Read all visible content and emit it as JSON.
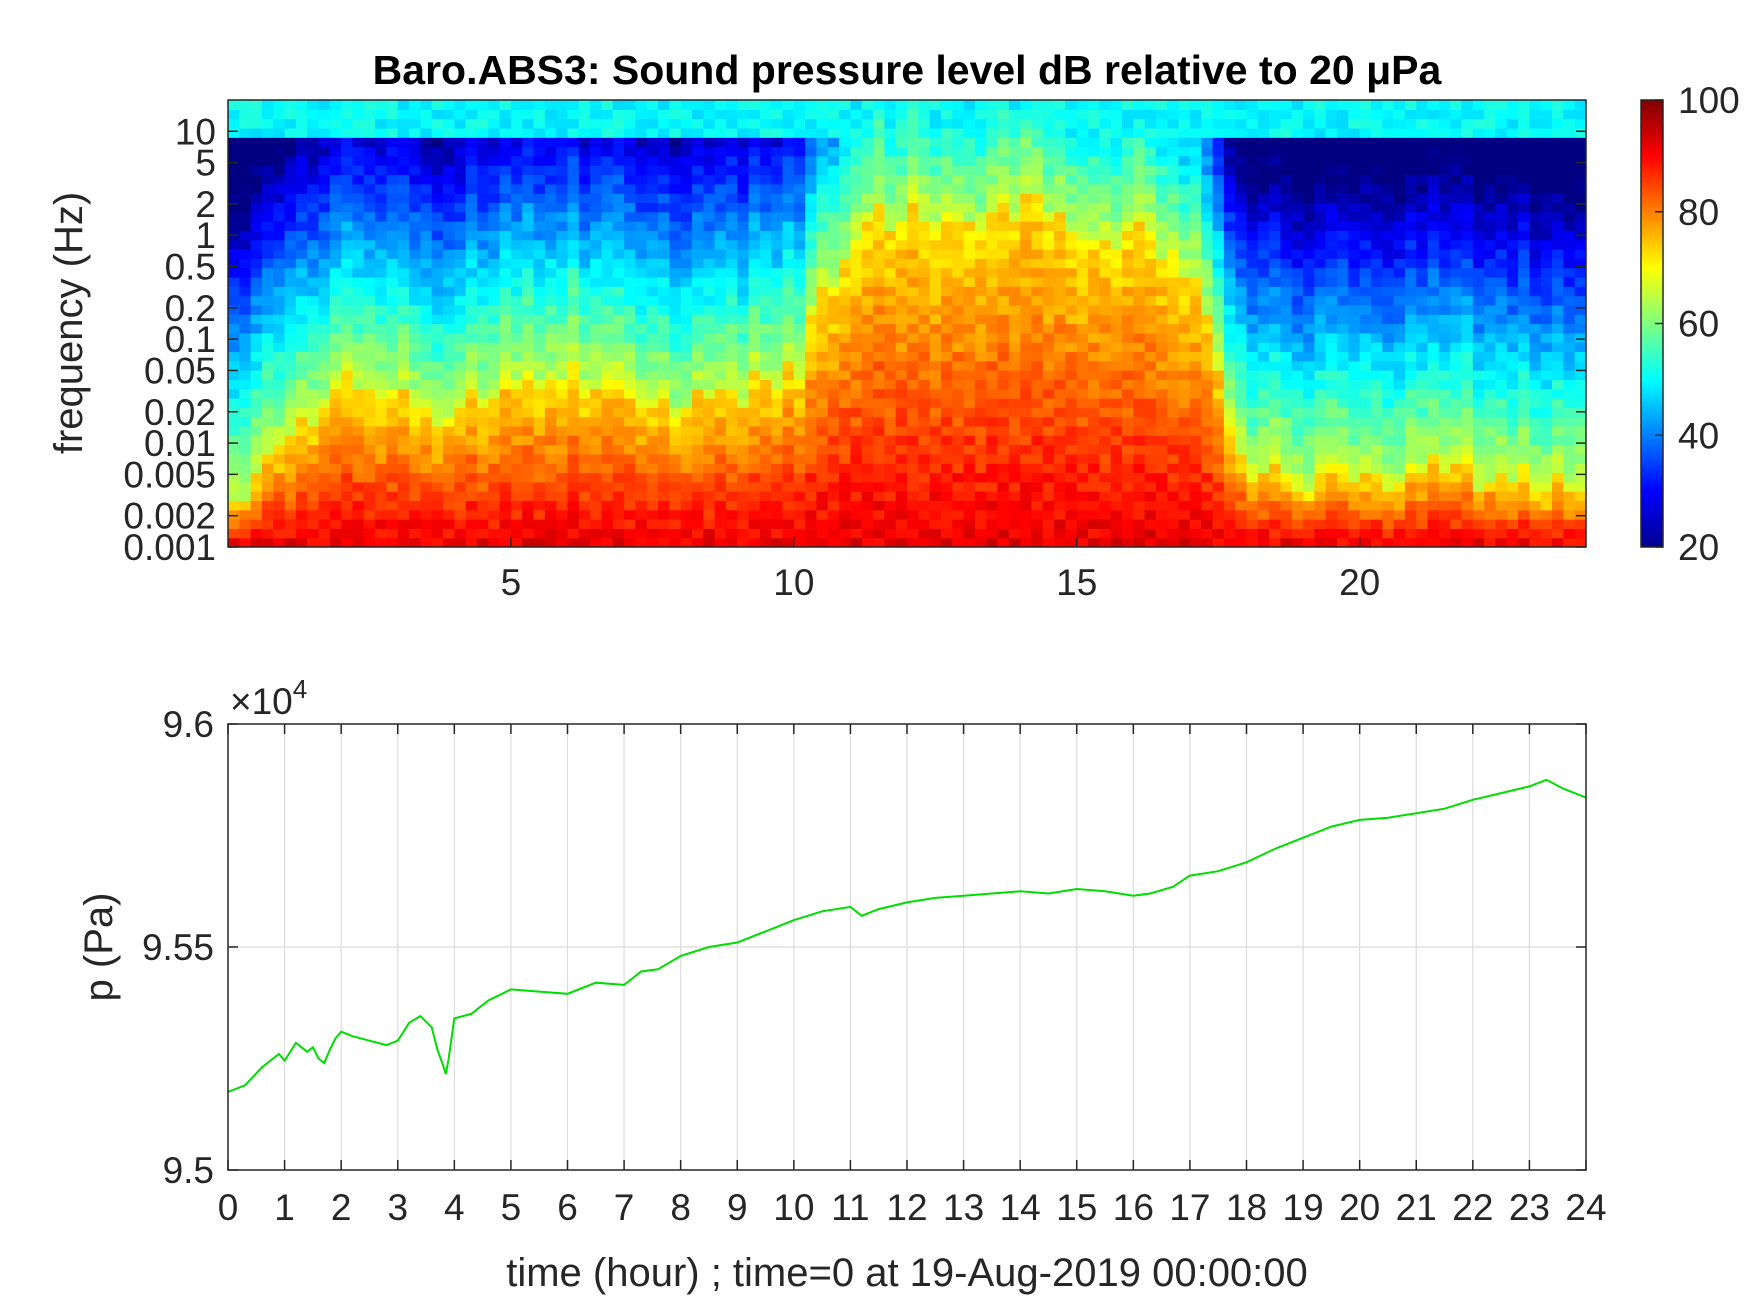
{
  "chart_data": [
    {
      "type": "heatmap",
      "title": "Baro.ABS3: Sound pressure level dB relative to 20 μPa",
      "xlabel": "",
      "ylabel": "frequency (Hz)",
      "xlim": [
        0,
        24
      ],
      "x_ticks": [
        5,
        10,
        15,
        20
      ],
      "y_scale": "log",
      "ylim": [
        0.001,
        20
      ],
      "y_ticks": [
        0.001,
        0.002,
        0.005,
        0.01,
        0.02,
        0.05,
        0.1,
        0.2,
        0.5,
        1,
        2,
        5,
        10
      ],
      "y_tick_labels": [
        "0.001",
        "0.002",
        "0.005",
        "0.01",
        "0.02",
        "0.05",
        "0.1",
        "0.2",
        "0.5",
        "1",
        "2",
        "5",
        "10"
      ],
      "colormap": "jet",
      "colorbar": {
        "range": [
          20,
          100
        ],
        "ticks": [
          20,
          40,
          60,
          80,
          100
        ],
        "tick_labels": [
          "20",
          "40",
          "60",
          "80",
          "100"
        ],
        "placement": "right"
      },
      "z_range": [
        20,
        100
      ],
      "description_hours": [
        0.5,
        2,
        4,
        6,
        8,
        10,
        11,
        12,
        13,
        14,
        15,
        16,
        17,
        18,
        20,
        22,
        23.5
      ],
      "upper_freq_limit_hz": [
        0.004,
        0.05,
        0.02,
        0.05,
        0.02,
        0.05,
        1,
        2,
        1,
        2,
        1,
        1,
        0.5,
        0.005,
        0.005,
        0.005,
        0.004
      ],
      "colors": {
        "low": "#00008f",
        "high": "#800000"
      }
    },
    {
      "type": "line",
      "title": "",
      "xlabel": "time (hour) ; time=0 at 19-Aug-2019 00:00:00",
      "ylabel": "p (Pa)",
      "xlim": [
        0,
        24
      ],
      "ylim": [
        95000,
        96000
      ],
      "x_ticks": [
        0,
        1,
        2,
        3,
        4,
        5,
        6,
        7,
        8,
        9,
        10,
        11,
        12,
        13,
        14,
        15,
        16,
        17,
        18,
        19,
        20,
        21,
        22,
        23,
        24
      ],
      "y_ticks": [
        95000,
        95500,
        96000
      ],
      "y_tick_labels": [
        "9.5",
        "9.55",
        "9.6"
      ],
      "exponent_label": "×10",
      "exponent_power": "4",
      "grid": true,
      "series": [
        {
          "color": "#00dd00",
          "x": [
            0,
            0.3,
            0.6,
            0.9,
            1.0,
            1.2,
            1.4,
            1.5,
            1.6,
            1.7,
            1.8,
            1.9,
            2.0,
            2.2,
            2.5,
            2.8,
            3.0,
            3.2,
            3.4,
            3.6,
            3.7,
            3.8,
            3.85,
            3.9,
            4.0,
            4.3,
            4.6,
            5.0,
            5.5,
            6.0,
            6.5,
            7.0,
            7.3,
            7.6,
            8.0,
            8.5,
            9.0,
            9.5,
            10.0,
            10.5,
            11.0,
            11.2,
            11.5,
            12.0,
            12.5,
            13.0,
            13.5,
            14.0,
            14.5,
            15.0,
            15.5,
            16.0,
            16.3,
            16.7,
            17.0,
            17.5,
            18.0,
            18.5,
            19.0,
            19.5,
            20.0,
            20.5,
            21.0,
            21.5,
            22.0,
            22.5,
            23.0,
            23.3,
            23.6,
            24.0
          ],
          "y": [
            95175,
            95190,
            95230,
            95260,
            95245,
            95285,
            95265,
            95275,
            95250,
            95240,
            95270,
            95295,
            95310,
            95300,
            95290,
            95280,
            95290,
            95330,
            95345,
            95320,
            95270,
            95235,
            95215,
            95250,
            95340,
            95350,
            95380,
            95405,
            95400,
            95395,
            95420,
            95415,
            95445,
            95450,
            95480,
            95500,
            95510,
            95535,
            95560,
            95580,
            95590,
            95570,
            95585,
            95600,
            95610,
            95615,
            95620,
            95625,
            95620,
            95630,
            95625,
            95615,
            95620,
            95635,
            95660,
            95670,
            95690,
            95720,
            95745,
            95770,
            95785,
            95790,
            95800,
            95810,
            95830,
            95845,
            95860,
            95875,
            95855,
            95835
          ]
        }
      ]
    }
  ]
}
